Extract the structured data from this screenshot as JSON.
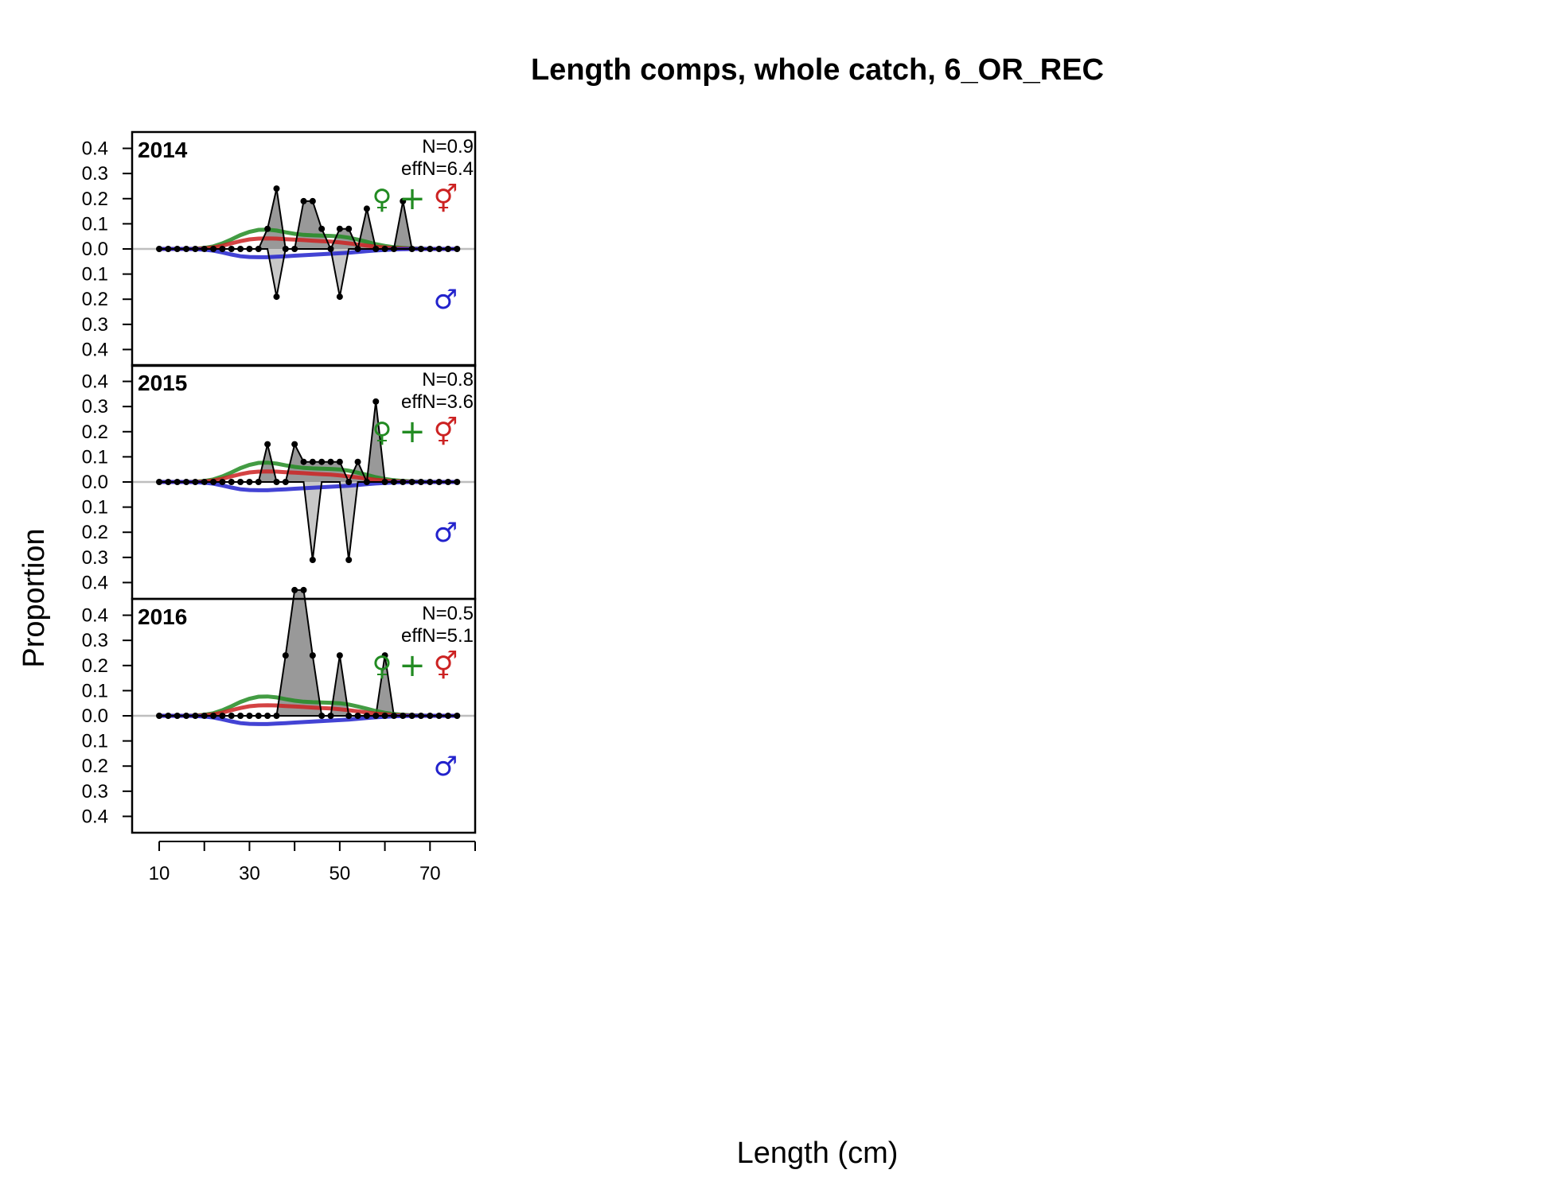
{
  "chart_data": {
    "type": "line",
    "title": "Length comps, whole catch, 6_OR_REC",
    "xlabel": "Length (cm)",
    "ylabel": "Proportion",
    "xlim": [
      4,
      80
    ],
    "ylim": [
      -0.4,
      0.4
    ],
    "x_ticks": [
      10,
      30,
      50,
      70
    ],
    "y_tick_labels": [
      "0.4",
      "0.3",
      "0.2",
      "0.1",
      "0.0",
      "0.1",
      "0.2",
      "0.3",
      "0.4"
    ],
    "y_tick_values": [
      0.4,
      0.3,
      0.2,
      0.1,
      0.0,
      -0.1,
      -0.2,
      -0.3,
      -0.4
    ],
    "legend_symbols": [
      "♀",
      "+",
      "⚥",
      "♂"
    ],
    "colors": {
      "female": "#228B22",
      "unsexed": "#228B22",
      "both": "#cc2222",
      "male": "#2222cc",
      "fill": "#999999",
      "zero_line": "#bebebe"
    },
    "length_bins": [
      10,
      12,
      14,
      16,
      18,
      20,
      22,
      24,
      26,
      28,
      30,
      32,
      34,
      36,
      38,
      40,
      42,
      44,
      46,
      48,
      50,
      52,
      54,
      56,
      58,
      60,
      62,
      64,
      66,
      68,
      70,
      72,
      74,
      76
    ],
    "panels": [
      {
        "year": "2014",
        "n_label": "N=0.9",
        "effn_label": "effN=6.4",
        "obs_female": [
          0,
          0,
          0,
          0,
          0,
          0,
          0,
          0,
          0,
          0,
          0,
          0,
          0.08,
          0.24,
          0,
          0,
          0.19,
          0.19,
          0.08,
          0,
          0.08,
          0.08,
          0,
          0.16,
          0,
          0,
          0,
          0.19,
          0,
          0,
          0,
          0,
          0,
          0
        ],
        "obs_male": [
          0,
          0,
          0,
          0,
          0,
          0,
          0,
          0,
          0,
          0,
          0,
          0,
          0,
          -0.19,
          0,
          0,
          0,
          0,
          0,
          0,
          -0.19,
          0,
          0,
          0,
          0,
          0,
          0,
          0,
          0,
          0,
          0,
          0,
          0,
          0
        ],
        "exp_female": [
          0,
          0,
          0,
          0,
          0.001,
          0.004,
          0.01,
          0.022,
          0.038,
          0.055,
          0.068,
          0.076,
          0.077,
          0.073,
          0.066,
          0.06,
          0.056,
          0.054,
          0.053,
          0.052,
          0.05,
          0.045,
          0.037,
          0.028,
          0.019,
          0.012,
          0.007,
          0.004,
          0.002,
          0.001,
          0,
          0,
          0,
          0
        ],
        "exp_both": [
          0,
          0,
          0,
          0,
          0,
          0.002,
          0.006,
          0.013,
          0.022,
          0.031,
          0.038,
          0.041,
          0.042,
          0.041,
          0.039,
          0.037,
          0.035,
          0.033,
          0.031,
          0.029,
          0.026,
          0.022,
          0.018,
          0.013,
          0.009,
          0.006,
          0.003,
          0.002,
          0.001,
          0,
          0,
          0,
          0,
          0
        ],
        "exp_male": [
          0,
          0,
          0,
          0,
          -0.001,
          -0.003,
          -0.007,
          -0.014,
          -0.022,
          -0.029,
          -0.032,
          -0.033,
          -0.033,
          -0.031,
          -0.029,
          -0.027,
          -0.025,
          -0.023,
          -0.021,
          -0.019,
          -0.017,
          -0.015,
          -0.012,
          -0.009,
          -0.006,
          -0.004,
          -0.002,
          -0.001,
          0,
          0,
          0,
          0,
          0,
          0
        ]
      },
      {
        "year": "2015",
        "n_label": "N=0.8",
        "effn_label": "effN=3.6",
        "obs_female": [
          0,
          0,
          0,
          0,
          0,
          0,
          0,
          0,
          0,
          0,
          0,
          0,
          0.15,
          0,
          0,
          0.15,
          0.08,
          0.08,
          0.08,
          0.08,
          0.08,
          0,
          0.08,
          0,
          0.32,
          0,
          0,
          0,
          0,
          0,
          0,
          0,
          0,
          0
        ],
        "obs_male": [
          0,
          0,
          0,
          0,
          0,
          0,
          0,
          0,
          0,
          0,
          0,
          0,
          0,
          0,
          0,
          0,
          0,
          -0.31,
          0,
          0,
          0,
          -0.31,
          0,
          0,
          0,
          0,
          0,
          0,
          0,
          0,
          0,
          0,
          0,
          0
        ],
        "exp_female": [
          0,
          0,
          0,
          0,
          0.001,
          0.004,
          0.01,
          0.022,
          0.038,
          0.055,
          0.068,
          0.076,
          0.077,
          0.073,
          0.066,
          0.06,
          0.056,
          0.054,
          0.053,
          0.052,
          0.05,
          0.045,
          0.037,
          0.028,
          0.019,
          0.012,
          0.007,
          0.004,
          0.002,
          0.001,
          0,
          0,
          0,
          0
        ],
        "exp_both": [
          0,
          0,
          0,
          0,
          0,
          0.002,
          0.006,
          0.013,
          0.022,
          0.031,
          0.038,
          0.041,
          0.042,
          0.041,
          0.039,
          0.037,
          0.035,
          0.033,
          0.031,
          0.029,
          0.026,
          0.022,
          0.018,
          0.013,
          0.009,
          0.006,
          0.003,
          0.002,
          0.001,
          0,
          0,
          0,
          0,
          0
        ],
        "exp_male": [
          0,
          0,
          0,
          0,
          -0.001,
          -0.003,
          -0.007,
          -0.014,
          -0.022,
          -0.029,
          -0.032,
          -0.033,
          -0.033,
          -0.031,
          -0.029,
          -0.027,
          -0.025,
          -0.023,
          -0.021,
          -0.019,
          -0.017,
          -0.015,
          -0.012,
          -0.009,
          -0.006,
          -0.004,
          -0.002,
          -0.001,
          0,
          0,
          0,
          0,
          0,
          0
        ]
      },
      {
        "year": "2016",
        "n_label": "N=0.5",
        "effn_label": "effN=5.1",
        "obs_female": [
          0,
          0,
          0,
          0,
          0,
          0,
          0,
          0,
          0,
          0,
          0,
          0,
          0,
          0,
          0.24,
          0.5,
          0.5,
          0.24,
          0,
          0,
          0.24,
          0,
          0,
          0,
          0,
          0,
          0,
          0,
          0,
          0,
          0,
          0,
          0,
          0
        ],
        "obs_male": [
          0,
          0,
          0,
          0,
          0,
          0,
          0,
          0,
          0,
          0,
          0,
          0,
          0,
          0,
          0,
          0,
          0,
          0,
          0,
          0,
          0,
          0,
          0,
          0,
          0,
          0,
          0,
          0,
          0,
          0,
          0,
          0,
          0,
          0
        ],
        "obs_unsexed_peak": {
          "x": 60,
          "value": 0.24
        },
        "exp_female": [
          0,
          0,
          0,
          0,
          0.001,
          0.004,
          0.01,
          0.022,
          0.038,
          0.055,
          0.068,
          0.076,
          0.077,
          0.073,
          0.066,
          0.06,
          0.056,
          0.054,
          0.053,
          0.052,
          0.05,
          0.045,
          0.037,
          0.028,
          0.019,
          0.012,
          0.007,
          0.004,
          0.002,
          0.001,
          0,
          0,
          0,
          0
        ],
        "exp_both": [
          0,
          0,
          0,
          0,
          0,
          0.002,
          0.006,
          0.013,
          0.022,
          0.031,
          0.038,
          0.041,
          0.042,
          0.041,
          0.039,
          0.037,
          0.035,
          0.033,
          0.031,
          0.029,
          0.026,
          0.022,
          0.018,
          0.013,
          0.009,
          0.006,
          0.003,
          0.002,
          0.001,
          0,
          0,
          0,
          0,
          0
        ],
        "exp_male": [
          0,
          0,
          0,
          0,
          -0.001,
          -0.003,
          -0.007,
          -0.014,
          -0.022,
          -0.029,
          -0.032,
          -0.033,
          -0.033,
          -0.031,
          -0.029,
          -0.027,
          -0.025,
          -0.023,
          -0.021,
          -0.019,
          -0.017,
          -0.015,
          -0.012,
          -0.009,
          -0.006,
          -0.004,
          -0.002,
          -0.001,
          0,
          0,
          0,
          0,
          0,
          0
        ]
      }
    ]
  }
}
